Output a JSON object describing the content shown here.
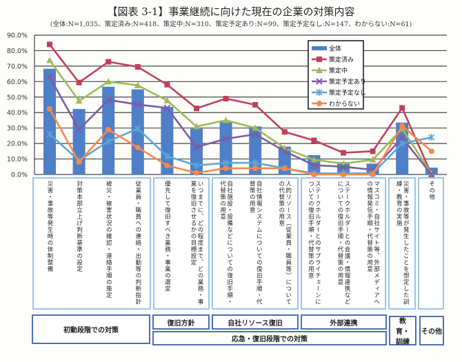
{
  "chart_data": {
    "type": "bar+line",
    "title": "【図表 3-1】事業継続に向けた現在の企業の対策内容",
    "subtitle": "(全体:N=1,035、策定済み:N=418、策定中:N=310、策定予定あり:N=99、策定予定なし:N=147、わからない:N=61)",
    "ylim": [
      0,
      90
    ],
    "yticks": [
      "0.0%",
      "10.0%",
      "20.0%",
      "30.0%",
      "40.0%",
      "50.0%",
      "60.0%",
      "70.0%",
      "80.0%",
      "90.0%"
    ],
    "grid": true,
    "legend_position": "top-center-right",
    "categories": [
      "災害・事故等発生時の体制整備",
      "対策本部立上げ判断基準の設定",
      "被災・被害状況の確認・連絡手順の策定",
      "従業員・職員への連絡・出勤等の判断指針",
      "優先して復旧すべき業務・事業の選定",
      "いつまでに、どの程度まで、どの業務・事業を復旧させるかの目標設定",
      "自社施設・設備などについての復旧手順・代替策の用意",
      "自社情報システムについての復旧手順・代替策の用意",
      "人的リソース（従業員・職員等）についての代替策の用意",
      "ステークホルダーとのサプライチェーンについての復旧手順・代替策の用意",
      "ステークホルダーとの会議・情報連携などについての復旧手順・代替策の用意",
      "マスコミ・自社サイト等、外部メディアへの情報発信手順・代替策の用意",
      "災害・事故等が発生したことを想定した訓練・教育の実施",
      "その他"
    ],
    "series": [
      {
        "name": "全体",
        "kind": "bar",
        "color": "#4f7fc8",
        "values": [
          68.3,
          42.3,
          56.7,
          55.0,
          43.7,
          29.6,
          34.0,
          31.0,
          18.0,
          12.5,
          8.0,
          7.0,
          33.5,
          4.4
        ]
      },
      {
        "name": "策定済み",
        "kind": "line",
        "marker": "square",
        "color": "#c0405a",
        "values": [
          84.0,
          59.4,
          72.8,
          69.5,
          58.0,
          42.7,
          49.0,
          45.0,
          27.5,
          22.0,
          14.0,
          15.0,
          43.0,
          0.0
        ]
      },
      {
        "name": "策定中",
        "kind": "line",
        "marker": "triangle",
        "color": "#9bbb59",
        "values": [
          73.8,
          47.5,
          60.0,
          57.6,
          47.8,
          31.0,
          35.0,
          30.0,
          17.0,
          9.5,
          7.0,
          9.5,
          29.5,
          0.5
        ]
      },
      {
        "name": "策定予定あり",
        "kind": "line",
        "marker": "x",
        "color": "#7d5ba6",
        "values": [
          63.0,
          29.0,
          48.2,
          45.2,
          43.0,
          17.7,
          23.0,
          26.0,
          15.0,
          6.0,
          5.0,
          3.0,
          23.7,
          0.0
        ]
      },
      {
        "name": "策定予定なし",
        "kind": "line",
        "marker": "star",
        "color": "#5aa6d8",
        "values": [
          26.0,
          9.0,
          21.4,
          29.6,
          11.8,
          5.8,
          7.5,
          7.5,
          4.0,
          0.7,
          0.7,
          0.7,
          20.0,
          24.0
        ]
      },
      {
        "name": "わからない",
        "kind": "line",
        "marker": "circle",
        "color": "#f7884a",
        "values": [
          42.3,
          8.0,
          29.0,
          17.4,
          5.8,
          1.0,
          4.0,
          4.0,
          4.0,
          0.0,
          0.0,
          0.0,
          31.4,
          15.0
        ]
      }
    ],
    "groups": [
      {
        "label": "初動段階での対策"
      },
      {
        "label": "復旧方針"
      },
      {
        "label": "自社リソース復旧"
      },
      {
        "label": "外部連携"
      },
      {
        "label": "応急・復旧段階での対策"
      },
      {
        "label": "教育・訓練"
      },
      {
        "label": "その他"
      }
    ]
  }
}
